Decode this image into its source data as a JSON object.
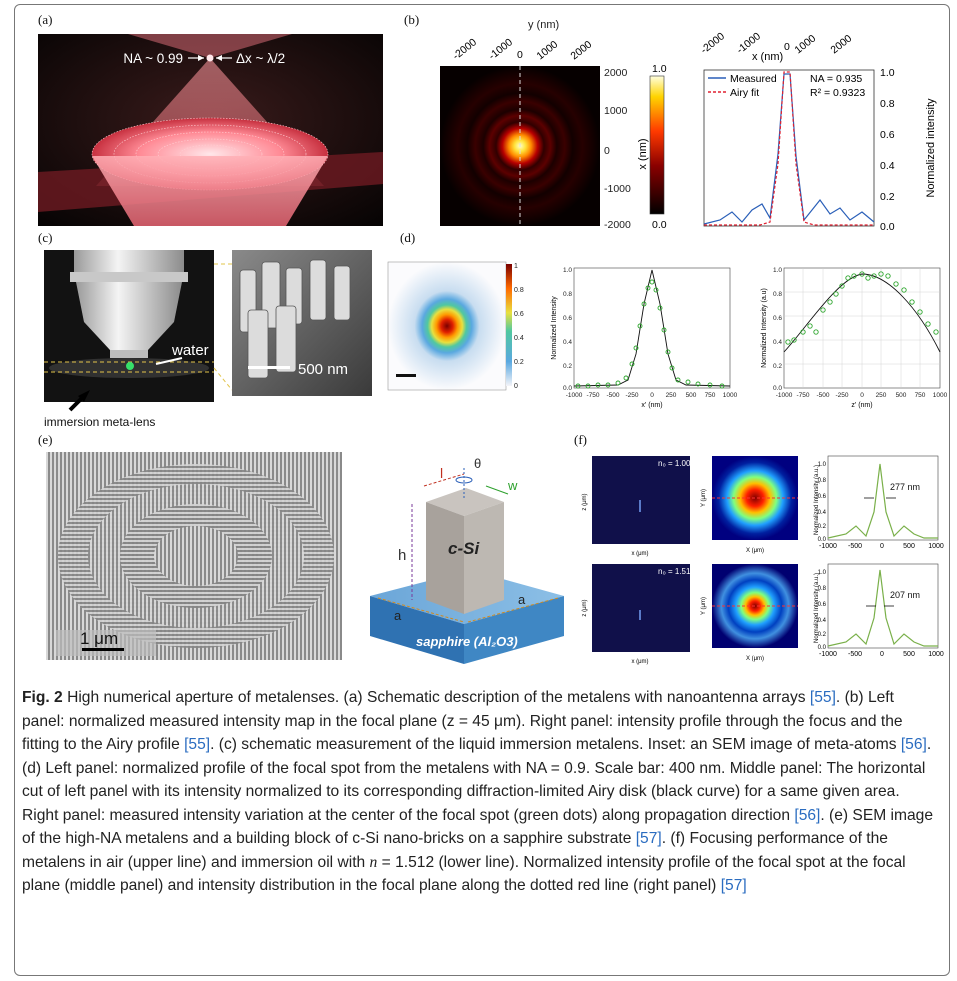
{
  "panels": {
    "a": {
      "label": "(a)",
      "na_label": "NA ~ 0.99",
      "dx_label": "Δx ~ λ/2"
    },
    "b": {
      "label": "(b)",
      "map": {
        "y_axis_title": "y (nm)",
        "x_axis_title": "x (nm)",
        "top_ticks": [
          "-2000",
          "-1000",
          "0",
          "1000",
          "2000"
        ],
        "right_ticks": [
          "2000",
          "1000",
          "0",
          "-1000",
          "-2000"
        ],
        "colorbar_ticks": [
          "1.0",
          "0.0"
        ]
      },
      "profile": {
        "x_axis_title": "x (nm)",
        "top_ticks": [
          "-2000",
          "-1000",
          "0",
          "1000",
          "2000"
        ],
        "y_axis_title": "Normalized intensity",
        "y_ticks": [
          "1.0",
          "0.8",
          "0.6",
          "0.4",
          "0.2",
          "0.0"
        ],
        "legend_measured": "Measured",
        "legend_fit": "Airy fit",
        "na_text": "NA = 0.935",
        "r2_text": "R² = 0.9323"
      }
    },
    "c": {
      "label": "(c)",
      "water_label": "water",
      "lens_label": "immersion meta-lens",
      "scale_label": "500 nm"
    },
    "d": {
      "label": "(d)",
      "colorbar_ticks": [
        "1",
        "0.8",
        "0.6",
        "0.4",
        "0.2",
        "0"
      ],
      "mid": {
        "ylabel": "Normalized Intensity",
        "xlabel": "x' (nm)",
        "x_ticks": [
          "-1000",
          "-750",
          "-500",
          "-250",
          "0",
          "250",
          "500",
          "750",
          "1000"
        ],
        "y_ticks": [
          "1.0",
          "0.8",
          "0.6",
          "0.4",
          "0.2",
          "0.0"
        ]
      },
      "right": {
        "ylabel": "Normalized Intensity (a.u)",
        "xlabel": "z' (nm)",
        "x_ticks": [
          "-1000",
          "-750",
          "-500",
          "-250",
          "0",
          "250",
          "500",
          "750",
          "1000"
        ],
        "y_ticks": [
          "1.0",
          "0.8",
          "0.6",
          "0.4",
          "0.2",
          "0.0"
        ]
      }
    },
    "e": {
      "label": "(e)",
      "scale_label": "1 μm",
      "pillar_label": "c-Si",
      "substrate_label": "sapphire (Al₂O3)",
      "dim_l": "l",
      "dim_w": "w",
      "dim_h": "h",
      "dim_a1": "a",
      "dim_a2": "a",
      "theta": "θ"
    },
    "f": {
      "label": "(f)",
      "n_top": "n₀ = 1.000",
      "n_bottom": "n₀ = 1.512",
      "fwhm_top": "277 nm",
      "fwhm_bottom": "207 nm",
      "prof_ylabel": "Normalized Intensity (a.u.)",
      "prof_x_ticks": [
        "-1000",
        "-500",
        "0",
        "500",
        "1000"
      ],
      "prof_y_ticks": [
        "1.0",
        "0.8",
        "0.6",
        "0.4",
        "0.2",
        "0.0"
      ],
      "map_ylabel": "Y (μm)",
      "map_xlabel": "X (μm)",
      "prop_ylabel": "z (μm)",
      "prop_xlabel": "x (μm)"
    }
  },
  "caption": {
    "fig_label": "Fig. 2",
    "s1": " High numerical aperture of metalenses. (a) Schematic description of the metalens with nanoantenna arrays ",
    "r1": "[55]",
    "s2": ". (b) Left panel: normalized measured intensity map in the focal plane (z = 45 μm). Right panel: intensity profile through the focus and the fitting to the Airy profile ",
    "r2": "[55]",
    "s3": ". (c) schematic measurement of the liquid immersion metalens. Inset: an SEM image of meta-atoms ",
    "r3": "[56]",
    "s4": ". (d) Left panel: normalized profile of the focal spot from the metalens with NA = 0.9. Scale bar: 400 nm. Middle panel: The horizontal cut of left panel with its intensity normalized to its corresponding diffraction-limited Airy disk (black curve) for a same given area. Right panel: measured intensity variation at the center of the focal spot (green dots) along propagation direction ",
    "r4": "[56]",
    "s5": ". (e) SEM image of the high-NA metalens and a building block of c-Si nano-bricks on a sapphire substrate ",
    "r5": "[57]",
    "s6": ". (f) Focusing performance of the metalens in air (upper line) and immersion oil with ",
    "n_sym": "n",
    "s7": " = 1.512 (lower line). Normalized intensity profile of the focal spot at the focal plane (middle panel) and intensity distribution in the focal plane along the dotted red line (right panel) ",
    "r6": "[57]"
  }
}
